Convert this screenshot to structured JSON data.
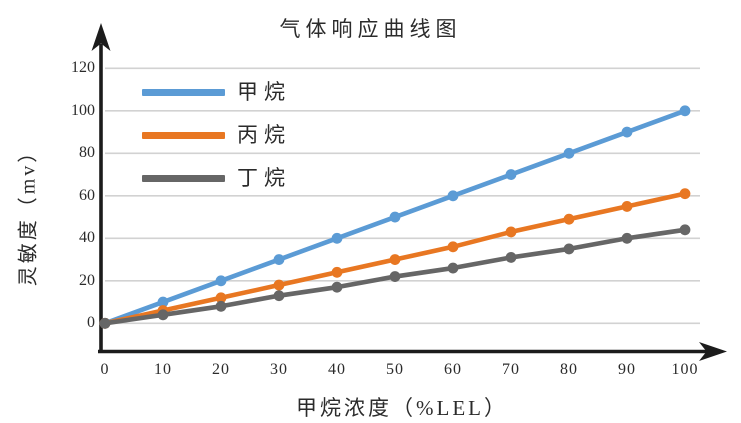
{
  "chart_data": {
    "type": "line",
    "title": "气体响应曲线图",
    "xlabel": "甲烷浓度（%LEL）",
    "ylabel": "灵敏度（mv）",
    "x": [
      0,
      10,
      20,
      30,
      40,
      50,
      60,
      70,
      80,
      90,
      100
    ],
    "series": [
      {
        "name": "甲烷",
        "color": "#5B9BD5",
        "values": [
          0,
          10,
          20,
          30,
          40,
          50,
          60,
          70,
          80,
          90,
          100
        ]
      },
      {
        "name": "丙烷",
        "color": "#E87722",
        "values": [
          0,
          6,
          12,
          18,
          24,
          30,
          36,
          43,
          49,
          55,
          61
        ]
      },
      {
        "name": "丁烷",
        "color": "#666666",
        "values": [
          0,
          4,
          8,
          13,
          17,
          22,
          26,
          31,
          35,
          40,
          44
        ]
      }
    ],
    "x_ticks": [
      "0",
      "10",
      "20",
      "30",
      "40",
      "50",
      "60",
      "70",
      "80",
      "90",
      "100"
    ],
    "y_ticks": [
      "0",
      "20",
      "40",
      "60",
      "80",
      "100",
      "120"
    ],
    "xlim": [
      0,
      100
    ],
    "ylim": [
      0,
      120
    ],
    "grid": "horizontal",
    "legend_position": "top-left-inside",
    "colors": {
      "background": "#FFFFFF",
      "gridline": "#D2D2D2",
      "axis": "#1C1C1C",
      "text": "#2B2B2B"
    }
  }
}
